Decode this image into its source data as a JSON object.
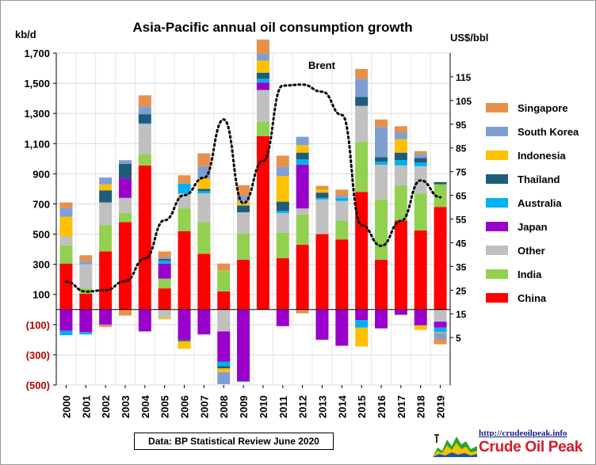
{
  "chart_data": {
    "type": "bar",
    "title": "Asia-Pacific annual oil consumption growth",
    "ylabel": "kb/d",
    "y2label": "US$/bbl",
    "ylim": [
      -500,
      1700
    ],
    "y2lim": [
      -15,
      125
    ],
    "yticks": [
      "1,700",
      "1,500",
      "1,300",
      "1,100",
      "900",
      "700",
      "500",
      "300",
      "100",
      "(100)",
      "(300)",
      "(500)"
    ],
    "yticks_values": [
      1700,
      1500,
      1300,
      1100,
      900,
      700,
      500,
      300,
      100,
      -100,
      -300,
      -500
    ],
    "y2ticks": [
      "115",
      "105",
      "95",
      "85",
      "75",
      "65",
      "55",
      "45",
      "35",
      "25",
      "15",
      "5"
    ],
    "y2ticks_values": [
      115,
      105,
      95,
      85,
      75,
      65,
      55,
      45,
      35,
      25,
      15,
      5
    ],
    "categories": [
      "2000",
      "2001",
      "2002",
      "2003",
      "2004",
      "2005",
      "2006",
      "2007",
      "2008",
      "2009",
      "2010",
      "2011",
      "2012",
      "2013",
      "2014",
      "2015",
      "2016",
      "2017",
      "2018",
      "2019"
    ],
    "stack_order": [
      "China",
      "India",
      "Other",
      "Japan",
      "Australia",
      "Thailand",
      "Indonesia",
      "South Korea",
      "Singapore"
    ],
    "series": [
      {
        "name": "China",
        "color": "#ff0000",
        "values": [
          305,
          105,
          385,
          580,
          955,
          140,
          520,
          370,
          120,
          330,
          1150,
          340,
          430,
          500,
          465,
          780,
          330,
          590,
          525,
          680
        ]
      },
      {
        "name": "India",
        "color": "#92d050",
        "values": [
          120,
          35,
          175,
          60,
          75,
          65,
          150,
          210,
          140,
          175,
          95,
          170,
          200,
          0,
          125,
          330,
          400,
          235,
          245,
          150
        ]
      },
      {
        "name": "Other",
        "color": "#c0c0c0",
        "values": [
          60,
          160,
          150,
          100,
          200,
          -55,
          100,
          190,
          -145,
          140,
          210,
          130,
          40,
          230,
          130,
          240,
          230,
          130,
          180,
          -80
        ]
      },
      {
        "name": "Japan",
        "color": "#9900cc",
        "values": [
          -140,
          -150,
          -100,
          130,
          -145,
          100,
          -200,
          -165,
          -200,
          -475,
          50,
          -110,
          290,
          -200,
          -240,
          -70,
          -125,
          -35,
          -105,
          -40
        ]
      },
      {
        "name": "Australia",
        "color": "#00b0f0",
        "values": [
          -30,
          -15,
          0,
          0,
          5,
          20,
          65,
          15,
          -30,
          -5,
          25,
          15,
          35,
          10,
          20,
          -50,
          20,
          35,
          25,
          -30
        ]
      },
      {
        "name": "Thailand",
        "color": "#1f5c7a",
        "values": [
          0,
          0,
          80,
          95,
          60,
          10,
          -10,
          15,
          -15,
          45,
          40,
          60,
          45,
          35,
          0,
          60,
          30,
          50,
          30,
          15
        ]
      },
      {
        "name": "Indonesia",
        "color": "#ffc000",
        "values": [
          130,
          0,
          40,
          0,
          0,
          -10,
          -50,
          70,
          -25,
          30,
          80,
          170,
          50,
          20,
          0,
          -125,
          0,
          90,
          -30,
          -5
        ]
      },
      {
        "name": "South Korea",
        "color": "#7f9fd3",
        "values": [
          60,
          20,
          45,
          25,
          50,
          10,
          0,
          80,
          -80,
          35,
          45,
          60,
          55,
          0,
          15,
          120,
          200,
          45,
          25,
          -40
        ]
      },
      {
        "name": "Singapore",
        "color": "#e8904a",
        "values": [
          35,
          40,
          -15,
          -40,
          75,
          40,
          55,
          85,
          45,
          70,
          95,
          75,
          -25,
          25,
          40,
          65,
          50,
          40,
          20,
          -35
        ]
      }
    ],
    "brent": {
      "name": "Brent",
      "values": [
        28.5,
        24.4,
        25.0,
        28.8,
        38.3,
        54.5,
        65.1,
        72.4,
        97.0,
        61.7,
        79.5,
        111.3,
        111.7,
        108.7,
        98.9,
        52.4,
        43.7,
        54.2,
        71.3,
        64.2
      ]
    },
    "legend": [
      "Singapore",
      "South Korea",
      "Indonesia",
      "Thailand",
      "Australia",
      "Japan",
      "Other",
      "India",
      "China"
    ],
    "legend_position": "right",
    "annotations": [
      "Brent"
    ],
    "source": "Data: BP Statistical Review June 2020",
    "logo_url": "http://crudeoilpeak.info",
    "logo_name": "Crude Oil Peak"
  },
  "colors": {
    "positive_tick": "#000000",
    "negative_tick": "#c00000",
    "brent": "#000000"
  }
}
